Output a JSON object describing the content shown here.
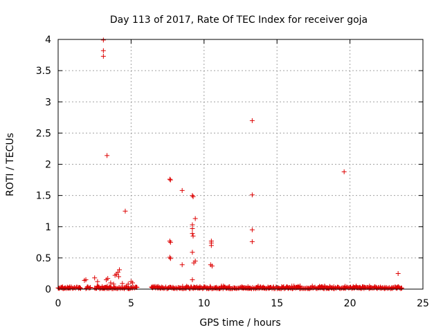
{
  "chart_data": {
    "type": "scatter",
    "title": "Day 113 of 2017, Rate Of TEC Index for receiver goja",
    "xlabel": "GPS time / hours",
    "ylabel": "ROTI / TECUs",
    "xlim": [
      0,
      25
    ],
    "ylim": [
      0,
      4
    ],
    "xticks": [
      0,
      5,
      10,
      15,
      20,
      25
    ],
    "yticks": [
      0,
      0.5,
      1,
      1.5,
      2,
      2.5,
      3,
      3.5,
      4
    ],
    "xtick_labels": [
      "0",
      "5",
      "10",
      "15",
      "20",
      "25"
    ],
    "ytick_labels": [
      "0",
      "0.5",
      "1",
      "1.5",
      "2",
      "2.5",
      "3",
      "3.5",
      "4"
    ],
    "grid": true,
    "marker": "+",
    "color": "#dd0000",
    "series": [
      {
        "name": "ROTI",
        "points": [
          [
            3.1,
            3.99
          ],
          [
            3.1,
            3.82
          ],
          [
            3.1,
            3.73
          ],
          [
            3.35,
            2.14
          ],
          [
            4.6,
            1.25
          ],
          [
            4.2,
            0.31
          ],
          [
            4.1,
            0.27
          ],
          [
            4.0,
            0.24
          ],
          [
            4.15,
            0.2
          ],
          [
            3.9,
            0.22
          ],
          [
            3.4,
            0.17
          ],
          [
            3.3,
            0.15
          ],
          [
            2.5,
            0.18
          ],
          [
            1.8,
            0.14
          ],
          [
            1.9,
            0.15
          ],
          [
            2.7,
            0.12
          ],
          [
            5.0,
            0.12
          ],
          [
            5.1,
            0.1
          ],
          [
            4.8,
            0.08
          ],
          [
            4.4,
            0.09
          ],
          [
            3.6,
            0.1
          ],
          [
            3.8,
            0.08
          ],
          [
            7.65,
            1.76
          ],
          [
            7.7,
            1.75
          ],
          [
            7.65,
            0.77
          ],
          [
            7.7,
            0.75
          ],
          [
            7.65,
            0.51
          ],
          [
            7.7,
            0.49
          ],
          [
            8.5,
            1.58
          ],
          [
            8.5,
            0.39
          ],
          [
            9.2,
            1.5
          ],
          [
            9.25,
            1.48
          ],
          [
            9.4,
            1.13
          ],
          [
            9.2,
            1.03
          ],
          [
            9.2,
            0.97
          ],
          [
            9.2,
            0.89
          ],
          [
            9.25,
            0.85
          ],
          [
            9.2,
            0.59
          ],
          [
            9.4,
            0.45
          ],
          [
            9.3,
            0.42
          ],
          [
            9.2,
            0.15
          ],
          [
            10.5,
            0.77
          ],
          [
            10.5,
            0.74
          ],
          [
            10.5,
            0.7
          ],
          [
            10.45,
            0.39
          ],
          [
            10.55,
            0.37
          ],
          [
            13.3,
            2.7
          ],
          [
            13.3,
            1.51
          ],
          [
            13.3,
            0.95
          ],
          [
            13.3,
            0.76
          ],
          [
            19.6,
            1.88
          ],
          [
            23.3,
            0.25
          ]
        ],
        "baseline_ranges": [
          [
            0.0,
            1.6
          ],
          [
            1.9,
            2.2
          ],
          [
            2.5,
            5.4
          ],
          [
            6.4,
            23.6
          ]
        ],
        "baseline_level": 0.02
      }
    ]
  }
}
